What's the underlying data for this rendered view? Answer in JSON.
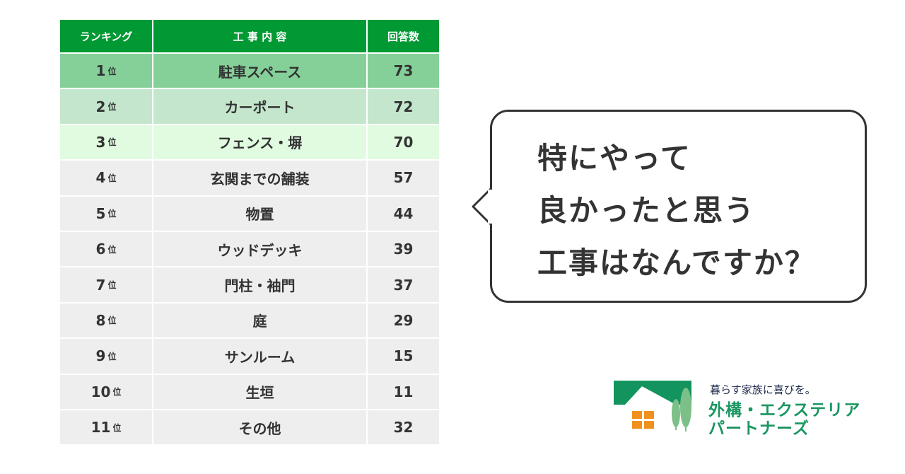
{
  "chart_data": {
    "type": "table",
    "columns": [
      "ランキング",
      "工 事 内 容",
      "回答数"
    ],
    "rank_suffix": "位",
    "rows": [
      {
        "rank": "1",
        "item": "駐車スペース",
        "count": 73,
        "color": "#85d098"
      },
      {
        "rank": "2",
        "item": "カーポート",
        "count": 72,
        "color": "#c3e6cc"
      },
      {
        "rank": "3",
        "item": "フェンス・塀",
        "count": 70,
        "color": "#e0fbe0"
      },
      {
        "rank": "4",
        "item": "玄関までの舗装",
        "count": 57,
        "color": "#eeeeee"
      },
      {
        "rank": "5",
        "item": "物置",
        "count": 44,
        "color": "#eeeeee"
      },
      {
        "rank": "6",
        "item": "ウッドデッキ",
        "count": 39,
        "color": "#eeeeee"
      },
      {
        "rank": "7",
        "item": "門柱・袖門",
        "count": 37,
        "color": "#eeeeee"
      },
      {
        "rank": "8",
        "item": "庭",
        "count": 29,
        "color": "#eeeeee"
      },
      {
        "rank": "9",
        "item": "サンルーム",
        "count": 15,
        "color": "#eeeeee"
      },
      {
        "rank": "10",
        "item": "生垣",
        "count": 11,
        "color": "#eeeeee"
      },
      {
        "rank": "11",
        "item": "その他",
        "count": 32,
        "color": "#eeeeee"
      }
    ],
    "header_color": "#009933"
  },
  "bubble": {
    "lines": [
      "特にやって",
      "良かったと思う",
      "工事はなんですか？"
    ]
  },
  "logo": {
    "tagline": "暮らす家族に喜びを。",
    "name_line1": "外構・エクステリア",
    "name_line2": "パートナーズ"
  }
}
